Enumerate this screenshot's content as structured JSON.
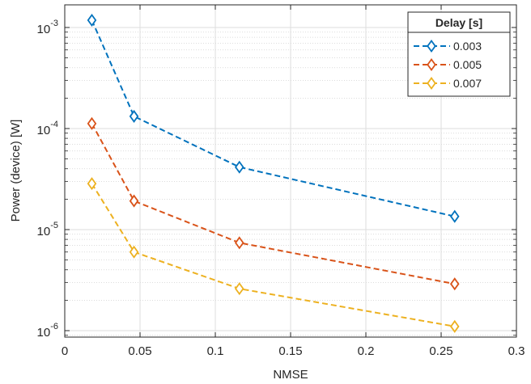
{
  "chart_data": {
    "type": "line",
    "title": "",
    "xlabel": "NMSE",
    "ylabel": "Power (device) [W]",
    "xlim": [
      0,
      0.3
    ],
    "ylim": [
      1e-06,
      0.002
    ],
    "yscale": "log",
    "grid": true,
    "minor_grid": true,
    "x_ticks": [
      0,
      0.05,
      0.1,
      0.15,
      0.2,
      0.25,
      0.3
    ],
    "x_tick_labels": [
      "0",
      "0.05",
      "0.1",
      "0.15",
      "0.2",
      "0.25",
      "0.3"
    ],
    "y_ticks": [
      {
        "value": 1e-06,
        "base": "10",
        "exp": "-6"
      },
      {
        "value": 1e-05,
        "base": "10",
        "exp": "-5"
      },
      {
        "value": 0.0001,
        "base": "10",
        "exp": "-4"
      },
      {
        "value": 0.001,
        "base": "10",
        "exp": "-3"
      }
    ],
    "legend": {
      "title": "Delay [s]",
      "placement": "top-right"
    },
    "series": [
      {
        "name": "0.003",
        "color": "#0072BD",
        "marker": "diamond",
        "line": "dashed",
        "x": [
          0.018,
          0.046,
          0.116,
          0.259
        ],
        "y": [
          0.00118,
          0.000132,
          4.15e-05,
          1.35e-05
        ]
      },
      {
        "name": "0.005",
        "color": "#D95319",
        "marker": "diamond",
        "line": "dashed",
        "x": [
          0.018,
          0.046,
          0.116,
          0.259
        ],
        "y": [
          0.000112,
          1.92e-05,
          7.4e-06,
          2.9e-06
        ]
      },
      {
        "name": "0.007",
        "color": "#EDB120",
        "marker": "diamond",
        "line": "dashed",
        "x": [
          0.018,
          0.046,
          0.116,
          0.259
        ],
        "y": [
          2.85e-05,
          6e-06,
          2.6e-06,
          1.1e-06
        ]
      }
    ]
  }
}
